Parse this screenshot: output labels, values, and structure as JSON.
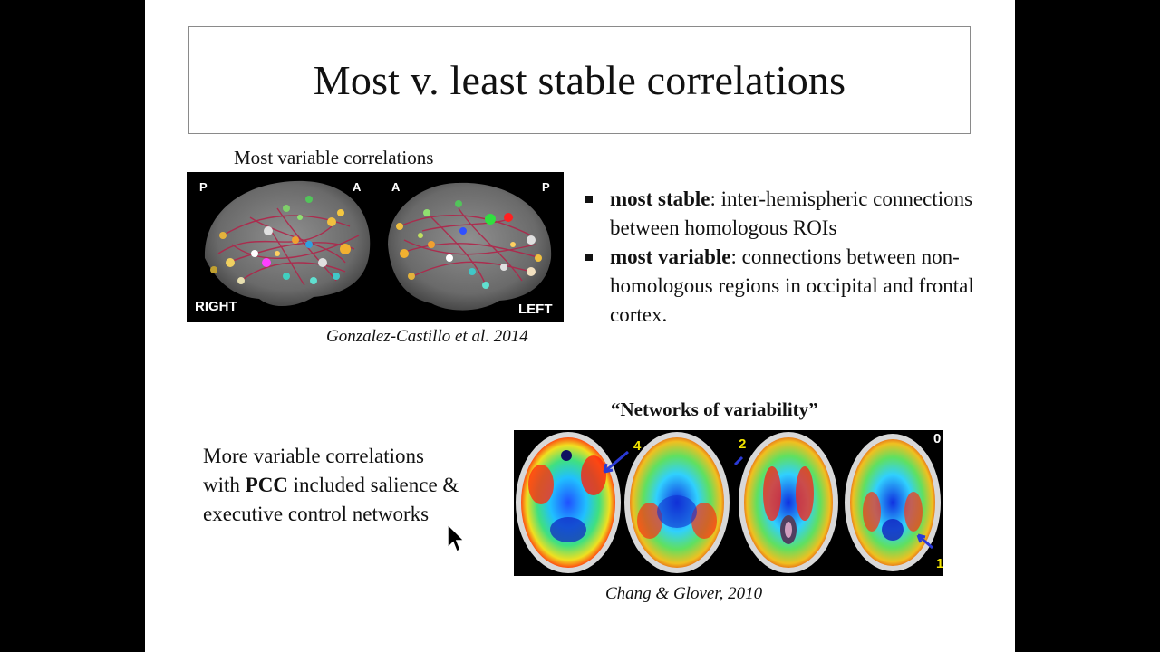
{
  "slide": {
    "title": "Most v. least stable correlations",
    "top_caption": "Most variable correlations",
    "brain_figure": {
      "labels": {
        "left_hemi_p": "P",
        "left_hemi_a": "A",
        "right_hemi_a": "A",
        "right_hemi_p": "P",
        "right": "RIGHT",
        "left": "LEFT"
      }
    },
    "citation_top": "Gonzalez-Castillo et al. 2014",
    "bullets": [
      {
        "bold": "most stable",
        "text": ": inter-hemispheric connections between homologous ROIs"
      },
      {
        "bold": "most variable",
        "text": ": connections between non-homologous regions in occipital and frontal cortex."
      }
    ],
    "networks_title": "“Networks of variability”",
    "lower_text": {
      "line1": "More variable correlations",
      "prefix": "with ",
      "bold": "PCC",
      "rest": " included salience & executive control networks"
    },
    "scan_figure": {
      "labels": {
        "n4": "4",
        "n2": "2",
        "n0": "0",
        "n1": "1"
      }
    },
    "citation_bottom": "Chang & Glover, 2010"
  },
  "colors": {
    "background": "#000000",
    "slide": "#ffffff",
    "text": "#111111",
    "scan_label": "#f2e400",
    "arrow": "#2a3ad6"
  },
  "icons": {
    "cursor": "mouse-pointer-icon",
    "bullet": "square-bullet-icon"
  }
}
